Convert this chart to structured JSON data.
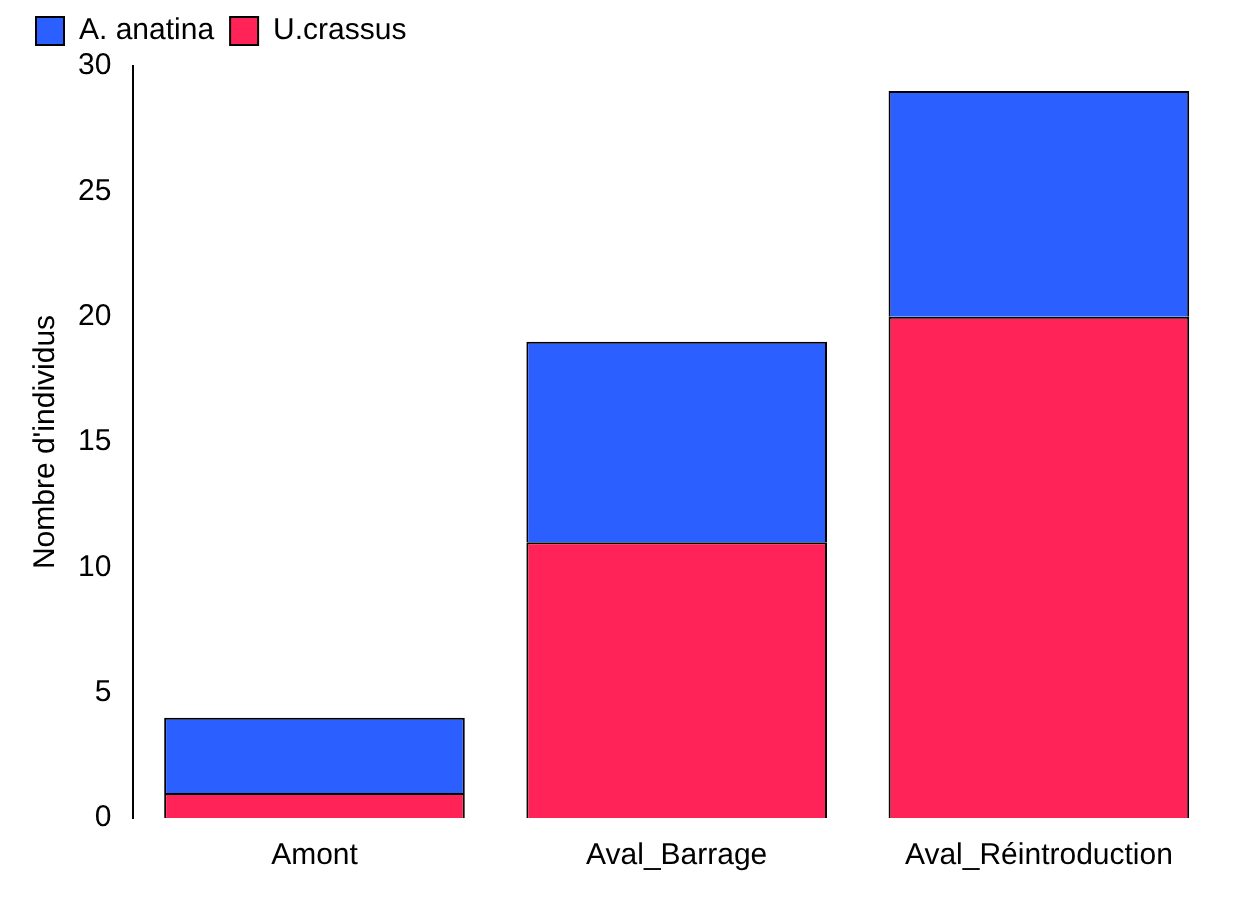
{
  "chart_data": {
    "type": "bar",
    "stacked": true,
    "ylabel": "Nombre d'individus",
    "categories": [
      "Amont",
      "Aval_Barrage",
      "Aval_Réintroduction"
    ],
    "series": [
      {
        "name": "U.crassus",
        "color": "#ff2357",
        "values": [
          1,
          11,
          20
        ]
      },
      {
        "name": "A. anatina",
        "color": "#2b5fff",
        "values": [
          3,
          8,
          9
        ]
      }
    ],
    "ylim": [
      0,
      30
    ],
    "yticks": [
      0,
      5,
      10,
      15,
      20,
      25,
      30
    ],
    "grid": false,
    "legend": "top left"
  }
}
